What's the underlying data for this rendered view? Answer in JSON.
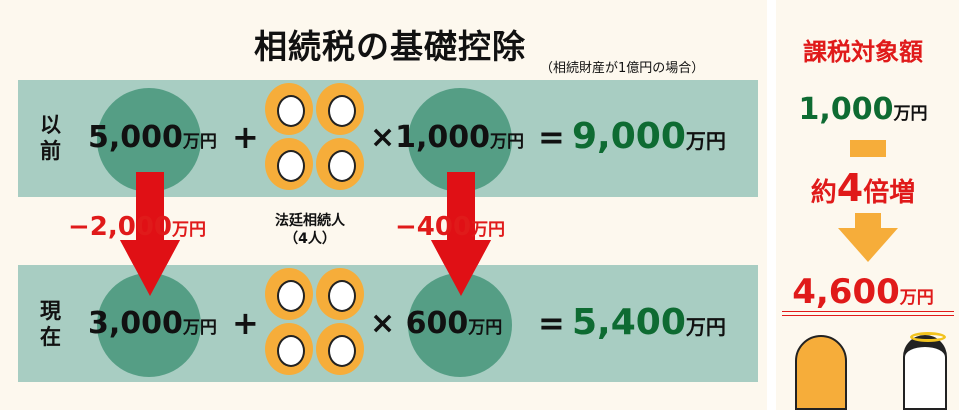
{
  "title": "相続税の基礎控除",
  "subtitle": "（相続財産が1億円の場合）",
  "before": {
    "label": "以前",
    "base": "5,000",
    "unit": "万円",
    "plus": "+",
    "times": "×",
    "per_heir": "1,000",
    "equals": "=",
    "result": "9,000"
  },
  "change": {
    "base_diff": "−2,000",
    "per_heir_diff": "−400",
    "unit": "万円",
    "heirs_label": "法廷相続人",
    "heirs_count": "（4人）"
  },
  "after": {
    "label": "現在",
    "base": "3,000",
    "unit": "万円",
    "plus": "+",
    "times": "×",
    "per_heir": "600",
    "equals": "=",
    "result": "5,400"
  },
  "side": {
    "title": "課税対象額",
    "from": "1,000",
    "unit": "万円",
    "increase_prefix": "約",
    "increase_num": "4",
    "increase_suffix": "倍増",
    "to": "4,600"
  },
  "colors": {
    "panel": "#a8cdc2",
    "circle": "#559e85",
    "arrow_red": "#e01015",
    "arrow_orange": "#f6ad3a",
    "green": "#0e6b32"
  }
}
